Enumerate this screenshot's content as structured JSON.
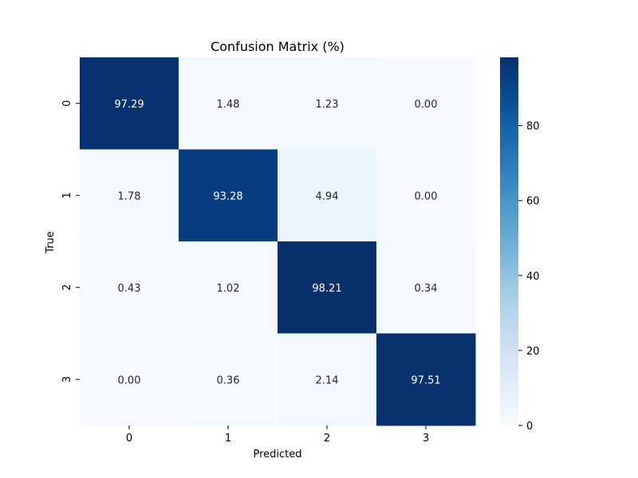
{
  "chart_data": {
    "type": "heatmap",
    "title": "Confusion Matrix (%)",
    "xlabel": "Predicted",
    "ylabel": "True",
    "x_categories": [
      "0",
      "1",
      "2",
      "3"
    ],
    "y_categories": [
      "0",
      "1",
      "2",
      "3"
    ],
    "values": [
      [
        97.29,
        1.48,
        1.23,
        0.0
      ],
      [
        1.78,
        93.28,
        4.94,
        0.0
      ],
      [
        0.43,
        1.02,
        98.21,
        0.34
      ],
      [
        0.0,
        0.36,
        2.14,
        97.51
      ]
    ],
    "labels": [
      [
        "97.29",
        "1.48",
        "1.23",
        "0.00"
      ],
      [
        "1.78",
        "93.28",
        "4.94",
        "0.00"
      ],
      [
        "0.43",
        "1.02",
        "98.21",
        "0.34"
      ],
      [
        "0.00",
        "0.36",
        "2.14",
        "97.51"
      ]
    ],
    "colormap": "Blues",
    "color_min": 0,
    "color_max": 98.21,
    "colorbar_ticks": [
      0,
      20,
      40,
      60,
      80
    ],
    "colorbar_tick_labels": [
      "0",
      "20",
      "40",
      "60",
      "80"
    ],
    "colors": {
      "low": "#f7fbff",
      "high": "#08306b",
      "text_dark": "#262626",
      "text_light": "#ffffff"
    }
  }
}
